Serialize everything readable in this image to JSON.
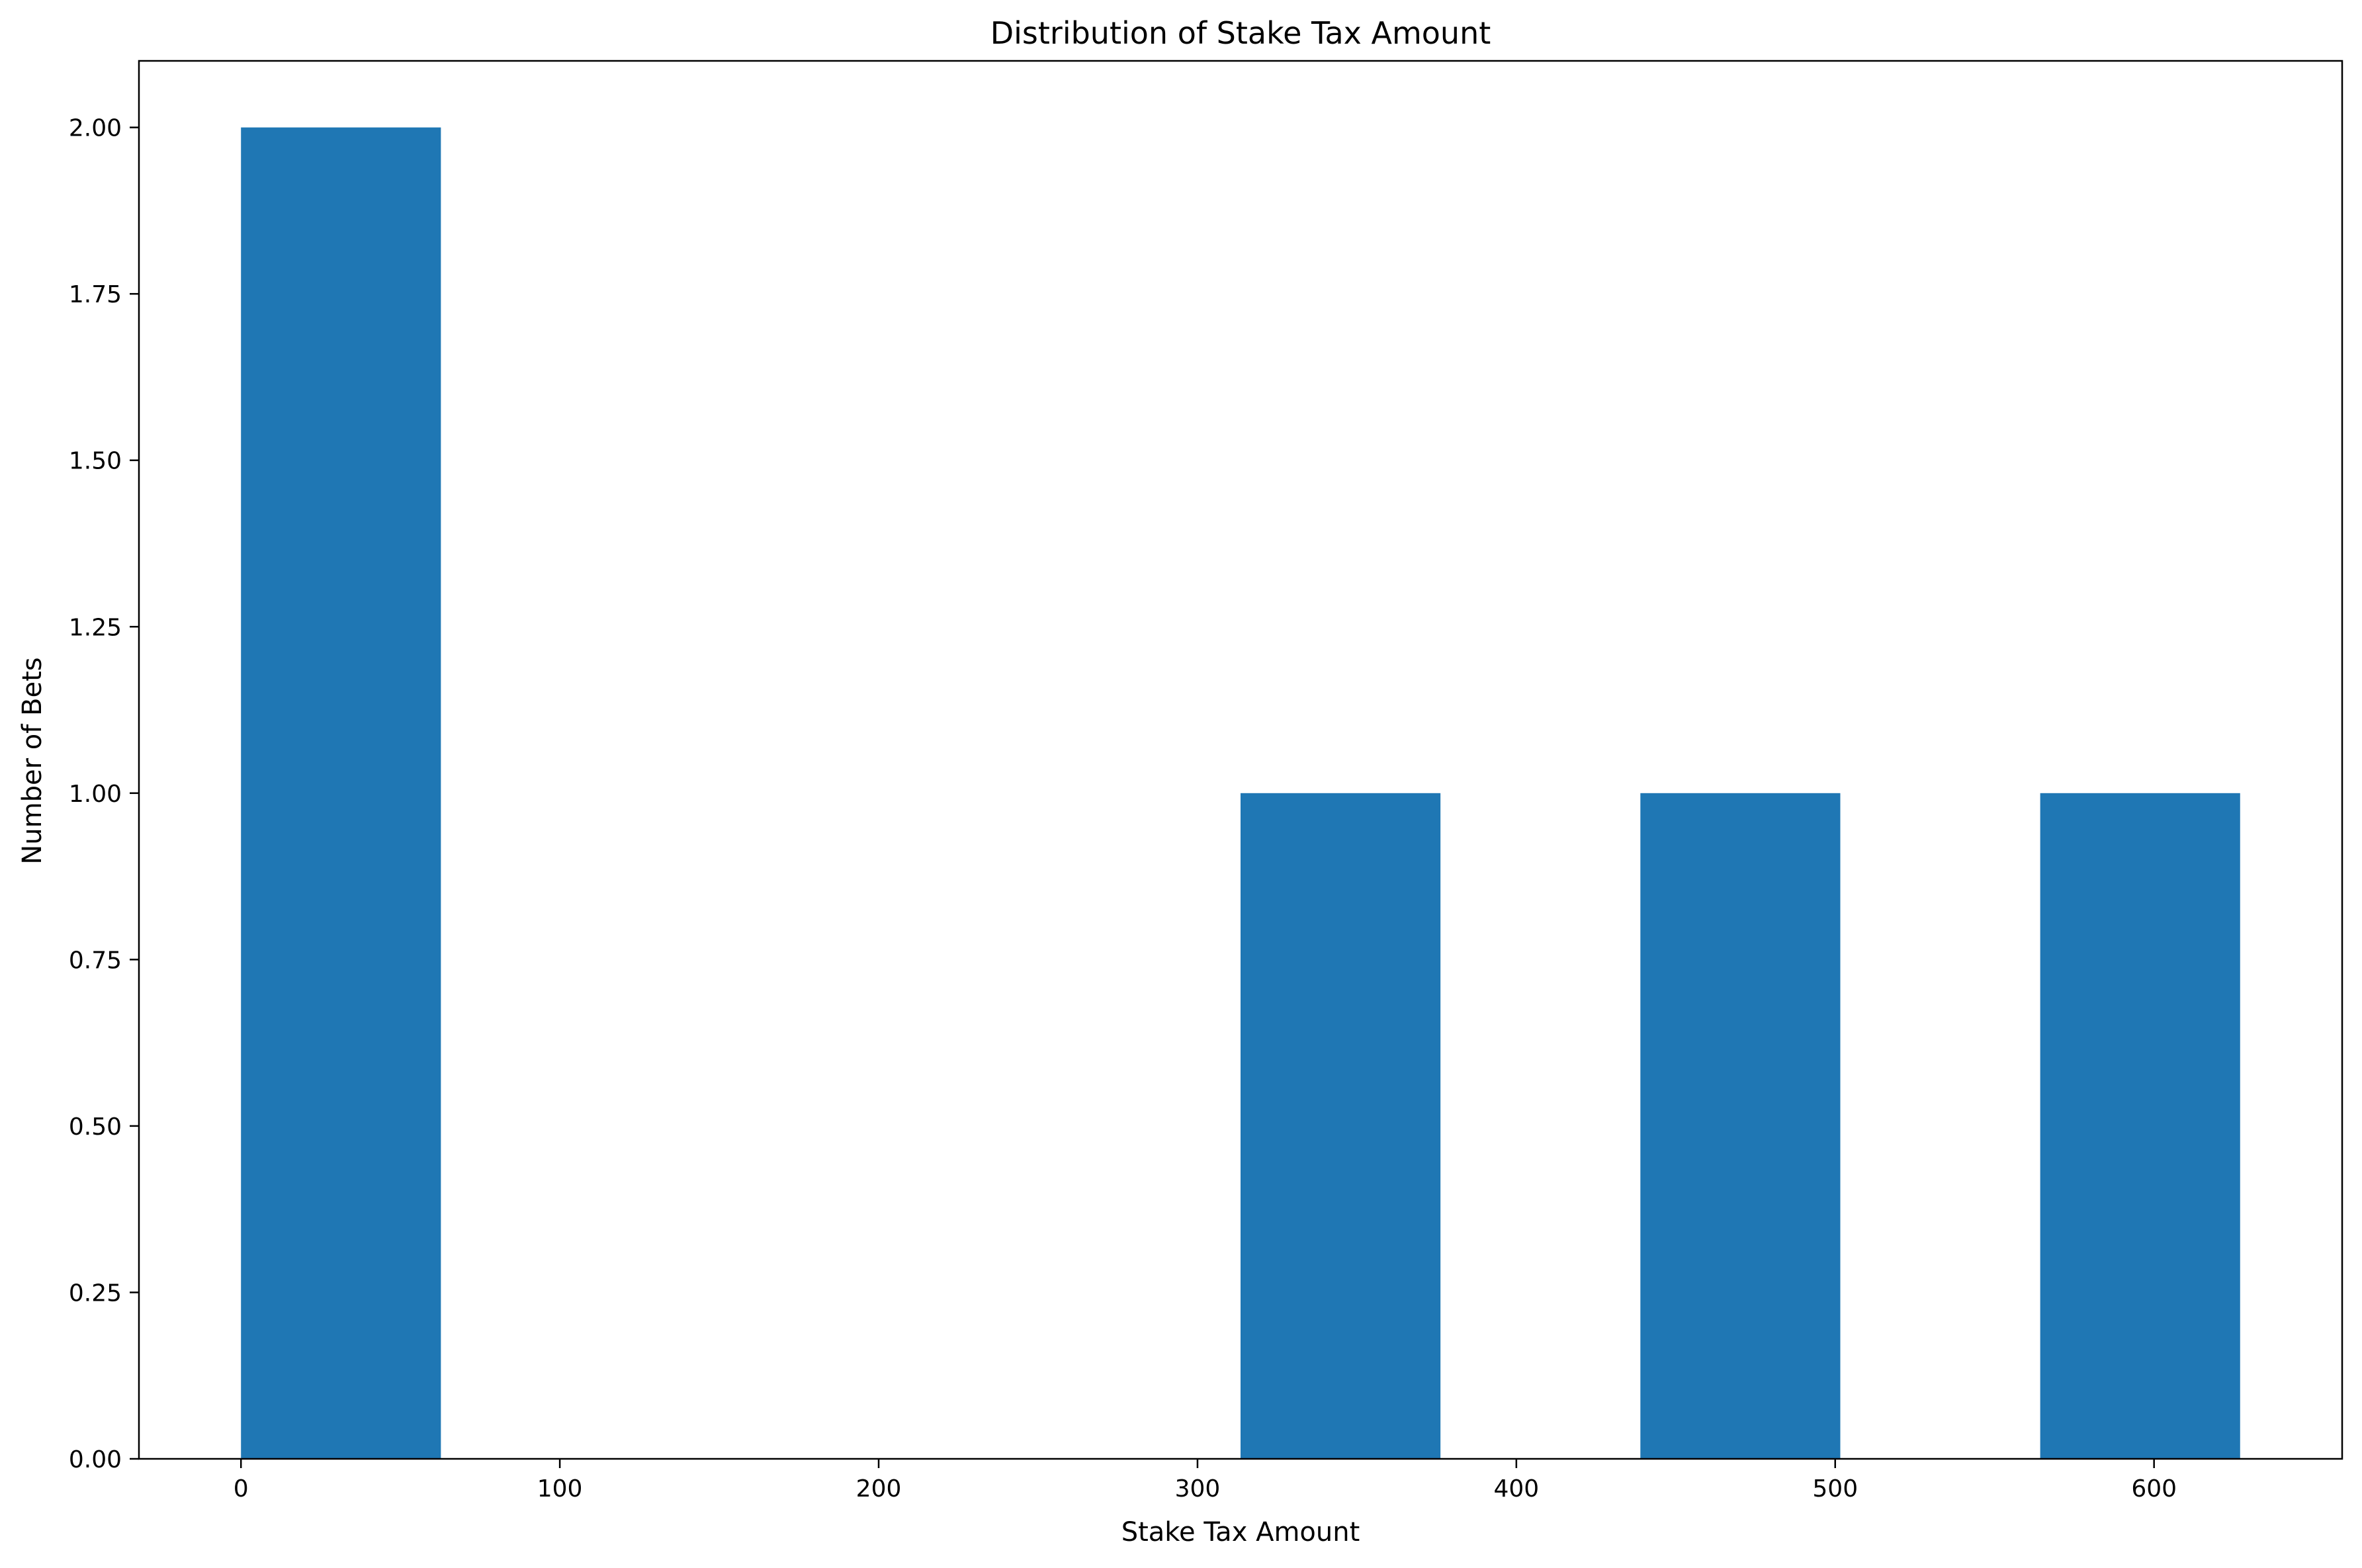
{
  "chart_data": {
    "type": "bar",
    "title": "Distribution of Stake Tax Amount",
    "xlabel": "Stake Tax Amount",
    "ylabel": "Number of Bets",
    "xlim": [
      -32,
      659
    ],
    "ylim": [
      0,
      2.1
    ],
    "xticks": [
      0,
      100,
      200,
      300,
      400,
      500,
      600
    ],
    "yticks": [
      "0.00",
      "0.25",
      "0.50",
      "0.75",
      "1.00",
      "1.25",
      "1.50",
      "1.75",
      "2.00"
    ],
    "bins": [
      {
        "start": 0,
        "end": 62.7,
        "count": 2
      },
      {
        "start": 62.7,
        "end": 125.4,
        "count": 0
      },
      {
        "start": 125.4,
        "end": 188.1,
        "count": 0
      },
      {
        "start": 188.1,
        "end": 250.8,
        "count": 0
      },
      {
        "start": 250.8,
        "end": 313.5,
        "count": 0
      },
      {
        "start": 313.5,
        "end": 376.2,
        "count": 1
      },
      {
        "start": 376.2,
        "end": 438.9,
        "count": 0
      },
      {
        "start": 438.9,
        "end": 501.6,
        "count": 1
      },
      {
        "start": 501.6,
        "end": 564.3,
        "count": 0
      },
      {
        "start": 564.3,
        "end": 627.0,
        "count": 1
      }
    ],
    "bar_color": "#1f77b4",
    "grid": false,
    "legend": "none"
  }
}
